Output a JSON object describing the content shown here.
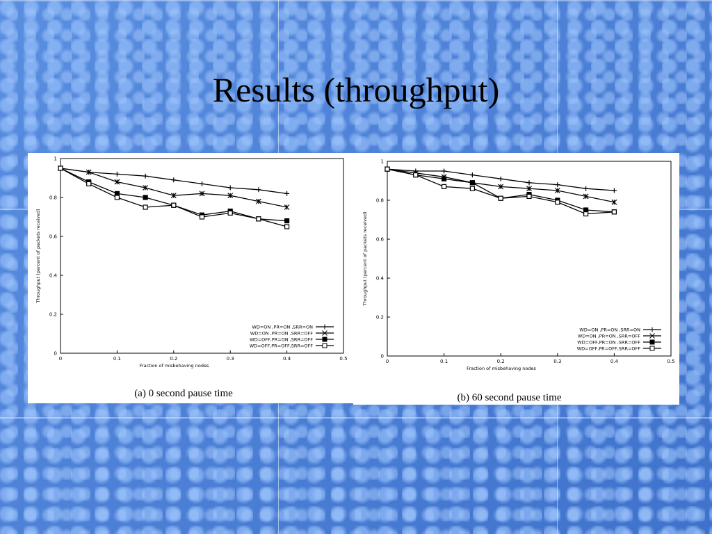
{
  "title": "Results (throughput)",
  "chart_data": [
    {
      "type": "line",
      "caption": "(a) 0 second pause time",
      "xlabel": "Fraction of misbehaving nodes",
      "ylabel": "Throughput (percent of packets received)",
      "x": [
        0,
        0.05,
        0.1,
        0.15,
        0.2,
        0.25,
        0.3,
        0.35,
        0.4
      ],
      "xlim": [
        0,
        0.5
      ],
      "xticks": [
        0,
        0.1,
        0.2,
        0.3,
        0.4,
        0.5
      ],
      "ylim": [
        0,
        1
      ],
      "yticks": [
        0,
        0.2,
        0.4,
        0.6,
        0.8,
        1
      ],
      "legend": "lower right",
      "series": [
        {
          "name": "WD=ON ,PR=ON ,SRR=ON",
          "color": "#000000",
          "marker": "plus",
          "values": [
            0.95,
            0.93,
            0.92,
            0.91,
            0.89,
            0.87,
            0.85,
            0.84,
            0.82
          ]
        },
        {
          "name": "WD=ON ,PR=ON ,SRR=OFF",
          "color": "#000000",
          "marker": "x",
          "values": [
            0.95,
            0.93,
            0.88,
            0.85,
            0.81,
            0.82,
            0.81,
            0.78,
            0.75
          ]
        },
        {
          "name": "WD=OFF,PR=ON ,SRR=OFF",
          "color": "#000000",
          "marker": "square-filled",
          "values": [
            0.95,
            0.88,
            0.82,
            0.8,
            0.76,
            0.71,
            0.73,
            0.69,
            0.68
          ]
        },
        {
          "name": "WD=OFF,PR=OFF,SRR=OFF",
          "color": "#000000",
          "marker": "square",
          "values": [
            0.95,
            0.87,
            0.8,
            0.75,
            0.76,
            0.7,
            0.72,
            0.69,
            0.65
          ]
        }
      ]
    },
    {
      "type": "line",
      "caption": "(b) 60 second pause time",
      "xlabel": "Fraction of misbehaving nodes",
      "ylabel": "Throughput (percent of packets received)",
      "x": [
        0,
        0.05,
        0.1,
        0.15,
        0.2,
        0.25,
        0.3,
        0.35,
        0.4
      ],
      "xlim": [
        0,
        0.5
      ],
      "xticks": [
        0,
        0.1,
        0.2,
        0.3,
        0.4,
        0.5
      ],
      "ylim": [
        0,
        1
      ],
      "yticks": [
        0,
        0.2,
        0.4,
        0.6,
        0.8,
        1
      ],
      "legend": "lower right",
      "series": [
        {
          "name": "WD=ON ,PR=ON ,SRR=ON",
          "color": "#000000",
          "marker": "plus",
          "values": [
            0.96,
            0.95,
            0.95,
            0.93,
            0.91,
            0.89,
            0.88,
            0.86,
            0.85
          ]
        },
        {
          "name": "WD=ON ,PR=ON ,SRR=OFF",
          "color": "#000000",
          "marker": "x",
          "values": [
            0.96,
            0.94,
            0.92,
            0.89,
            0.87,
            0.86,
            0.85,
            0.82,
            0.79
          ]
        },
        {
          "name": "WD=OFF,PR=ON ,SRR=OFF",
          "color": "#000000",
          "marker": "square-filled",
          "values": [
            0.96,
            0.93,
            0.91,
            0.89,
            0.81,
            0.83,
            0.8,
            0.75,
            0.74
          ]
        },
        {
          "name": "WD=OFF,PR=OFF,SRR=OFF",
          "color": "#000000",
          "marker": "square",
          "values": [
            0.96,
            0.93,
            0.87,
            0.86,
            0.81,
            0.82,
            0.79,
            0.73,
            0.74
          ]
        }
      ]
    }
  ]
}
